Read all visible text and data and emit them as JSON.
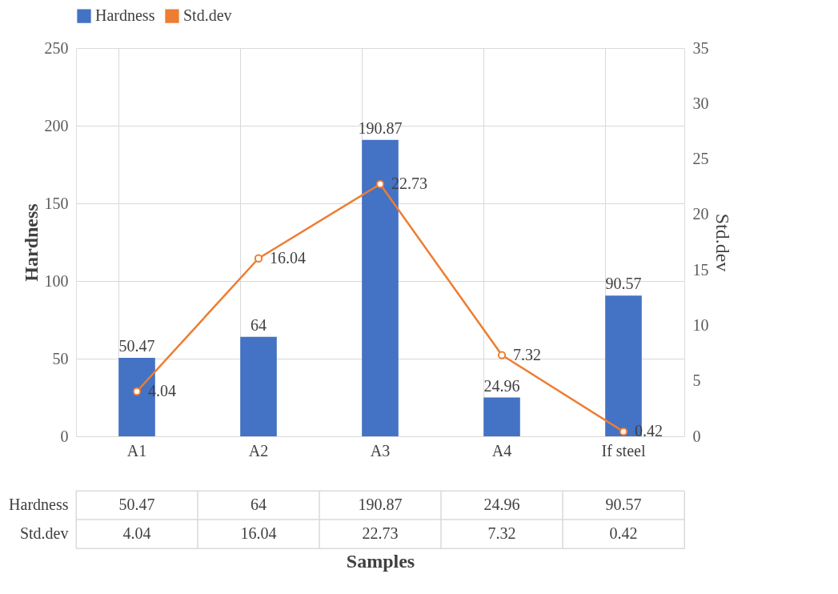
{
  "chart_data": {
    "type": "bar",
    "categories": [
      "A1",
      "A2",
      "A3",
      "A4",
      "If steel"
    ],
    "series": [
      {
        "name": "Hardness",
        "color": "#4472c4",
        "values": [
          50.47,
          64,
          190.87,
          24.96,
          90.57
        ]
      },
      {
        "name": "Std.dev",
        "type": "line",
        "axis": "y2",
        "color": "#ed7d31",
        "marker": "circle",
        "values": [
          4.04,
          16.04,
          22.73,
          7.32,
          0.42
        ]
      }
    ],
    "xlabel": "Samples",
    "ylabel": "Hardness",
    "y2label": "Std.dev",
    "ylim": [
      0,
      250
    ],
    "yticks": [
      0,
      50,
      100,
      150,
      200,
      250
    ],
    "y2lim": [
      0,
      35
    ],
    "y2ticks": [
      0,
      5,
      10,
      15,
      20,
      25,
      30,
      35
    ],
    "grid": true,
    "legend": "top",
    "data_labels": true,
    "annotations": [
      {
        "text": "50.47",
        "x": "A1",
        "y": 50.47
      },
      {
        "text": "64",
        "x": "A2",
        "y": 64
      },
      {
        "text": "190.87",
        "x": "A3",
        "y": 190.87
      },
      {
        "text": "24.96",
        "x": "A4",
        "y": 24.96
      },
      {
        "text": "90.57",
        "x": "If steel",
        "y": 90.57
      },
      "4.04",
      "16.04",
      "22.73",
      "7.32",
      "0.42"
    ]
  }
}
